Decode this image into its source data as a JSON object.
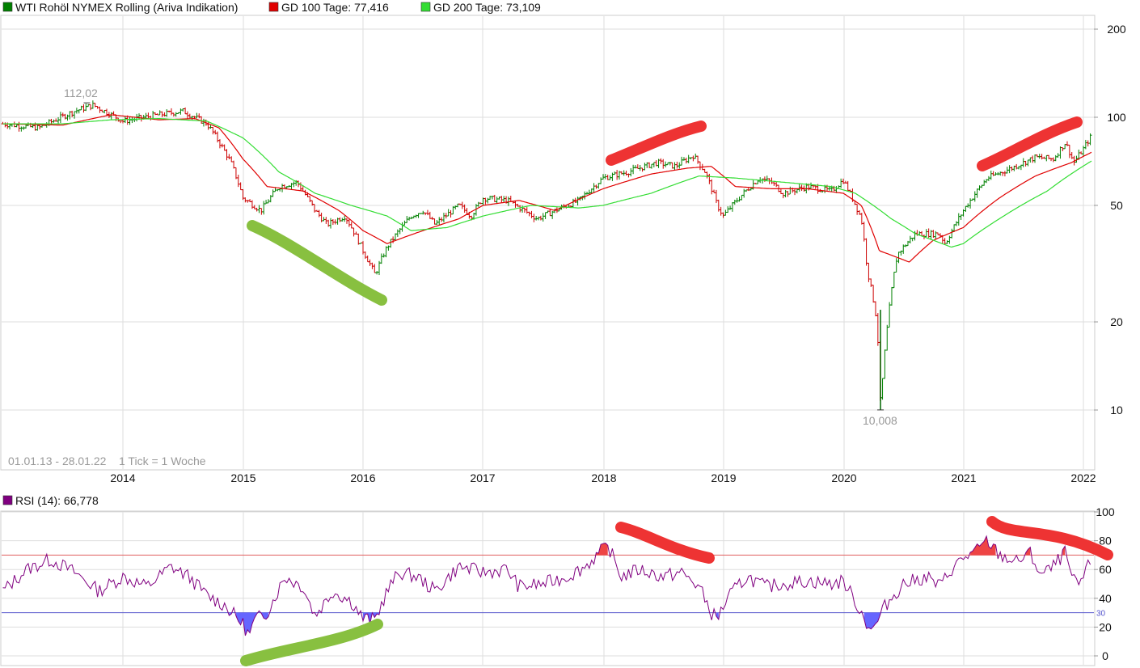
{
  "legend": {
    "price_label": "WTI Rohöl NYMEX Rolling (Ariva Indikation)",
    "gd100_label": "GD 100 Tage: 77,416",
    "gd200_label": "GD 200 Tage: 73,109",
    "rsi_label": "RSI (14): 66,778"
  },
  "info": {
    "range": "01.01.13 - 28.01.22",
    "tick": "1 Tick = 1 Woche"
  },
  "annotations": {
    "high_label": "112,02",
    "low_label": "10,008"
  },
  "colors": {
    "price_legend": "#008000",
    "gd100": "#e00000",
    "gd200": "#33dd33",
    "rsi": "#800080",
    "rsi_fill": "#6666ff",
    "rsi_over_fill": "#ee4444",
    "marker_red": "#ee3333",
    "marker_green": "#88c040",
    "grid": "#dddddd"
  },
  "chart_data": [
    {
      "type": "line",
      "scale": "log",
      "x_labels": [
        "2014",
        "2015",
        "2016",
        "2017",
        "2018",
        "2019",
        "2020",
        "2021",
        "2022"
      ],
      "y_ticks": [
        10,
        20,
        50,
        100,
        200
      ],
      "y_tick_labels": [
        "10",
        "20",
        "50",
        "100",
        "200"
      ],
      "series": [
        {
          "name": "WTI Rohöl NYMEX Rolling (Ariva Indikation)",
          "points": [
            [
              2013.0,
              95
            ],
            [
              2013.3,
              92
            ],
            [
              2013.6,
              105
            ],
            [
              2013.75,
              110
            ],
            [
              2014.0,
              97
            ],
            [
              2014.3,
              102
            ],
            [
              2014.5,
              105
            ],
            [
              2014.7,
              95
            ],
            [
              2014.9,
              70
            ],
            [
              2015.0,
              53
            ],
            [
              2015.15,
              48
            ],
            [
              2015.3,
              58
            ],
            [
              2015.45,
              60
            ],
            [
              2015.6,
              48
            ],
            [
              2015.7,
              43
            ],
            [
              2015.85,
              46
            ],
            [
              2016.0,
              35
            ],
            [
              2016.1,
              29
            ],
            [
              2016.2,
              36
            ],
            [
              2016.4,
              46
            ],
            [
              2016.5,
              48
            ],
            [
              2016.6,
              43
            ],
            [
              2016.8,
              50
            ],
            [
              2016.9,
              46
            ],
            [
              2017.0,
              53
            ],
            [
              2017.2,
              52
            ],
            [
              2017.45,
              45
            ],
            [
              2017.6,
              48
            ],
            [
              2017.8,
              52
            ],
            [
              2018.0,
              62
            ],
            [
              2018.2,
              65
            ],
            [
              2018.45,
              70
            ],
            [
              2018.6,
              68
            ],
            [
              2018.75,
              74
            ],
            [
              2018.85,
              65
            ],
            [
              2018.95,
              50
            ],
            [
              2019.0,
              46
            ],
            [
              2019.3,
              62
            ],
            [
              2019.4,
              60
            ],
            [
              2019.5,
              55
            ],
            [
              2019.7,
              58
            ],
            [
              2019.9,
              56
            ],
            [
              2020.0,
              61
            ],
            [
              2020.15,
              45
            ],
            [
              2020.2,
              30
            ],
            [
              2020.28,
              20
            ],
            [
              2020.31,
              10.008
            ],
            [
              2020.36,
              18
            ],
            [
              2020.45,
              34
            ],
            [
              2020.6,
              40
            ],
            [
              2020.8,
              40
            ],
            [
              2020.85,
              37
            ],
            [
              2021.0,
              48
            ],
            [
              2021.2,
              62
            ],
            [
              2021.4,
              67
            ],
            [
              2021.6,
              73
            ],
            [
              2021.75,
              72
            ],
            [
              2021.85,
              82
            ],
            [
              2021.92,
              70
            ],
            [
              2022.0,
              78
            ],
            [
              2022.07,
              87
            ]
          ]
        },
        {
          "name": "GD 100 Tage: 77,416",
          "points": [
            [
              2013.0,
              95
            ],
            [
              2013.5,
              94
            ],
            [
              2013.9,
              102
            ],
            [
              2014.3,
              98
            ],
            [
              2014.6,
              99
            ],
            [
              2014.8,
              92
            ],
            [
              2015.0,
              72
            ],
            [
              2015.2,
              58
            ],
            [
              2015.5,
              56
            ],
            [
              2015.8,
              48
            ],
            [
              2016.0,
              41
            ],
            [
              2016.2,
              37
            ],
            [
              2016.5,
              41
            ],
            [
              2016.8,
              45
            ],
            [
              2017.0,
              50
            ],
            [
              2017.3,
              52
            ],
            [
              2017.6,
              48
            ],
            [
              2018.0,
              57
            ],
            [
              2018.4,
              64
            ],
            [
              2018.7,
              67
            ],
            [
              2018.9,
              68
            ],
            [
              2019.1,
              58
            ],
            [
              2019.4,
              57
            ],
            [
              2019.7,
              57
            ],
            [
              2020.0,
              55
            ],
            [
              2020.15,
              50
            ],
            [
              2020.3,
              35
            ],
            [
              2020.55,
              32
            ],
            [
              2020.75,
              38
            ],
            [
              2021.0,
              42
            ],
            [
              2021.3,
              53
            ],
            [
              2021.6,
              63
            ],
            [
              2021.9,
              70
            ],
            [
              2022.07,
              76
            ]
          ]
        },
        {
          "name": "GD 200 Tage: 73,109",
          "points": [
            [
              2013.0,
              95
            ],
            [
              2013.5,
              95
            ],
            [
              2013.9,
              98
            ],
            [
              2014.3,
              99
            ],
            [
              2014.7,
              97
            ],
            [
              2015.0,
              85
            ],
            [
              2015.3,
              65
            ],
            [
              2015.6,
              55
            ],
            [
              2015.9,
              50
            ],
            [
              2016.2,
              46
            ],
            [
              2016.4,
              41
            ],
            [
              2016.7,
              42
            ],
            [
              2017.0,
              46
            ],
            [
              2017.4,
              50
            ],
            [
              2017.8,
              49
            ],
            [
              2018.0,
              50
            ],
            [
              2018.4,
              55
            ],
            [
              2018.8,
              63
            ],
            [
              2019.1,
              62
            ],
            [
              2019.5,
              60
            ],
            [
              2019.9,
              58
            ],
            [
              2020.1,
              55
            ],
            [
              2020.4,
              45
            ],
            [
              2020.6,
              40
            ],
            [
              2020.9,
              36
            ],
            [
              2021.0,
              37
            ],
            [
              2021.3,
              45
            ],
            [
              2021.7,
              56
            ],
            [
              2022.07,
              71
            ]
          ]
        }
      ],
      "markers": {
        "high": {
          "x": 2013.7,
          "y": 112.02
        },
        "low": {
          "x": 2020.31,
          "y": 10.008
        }
      }
    },
    {
      "type": "line",
      "y_ticks": [
        0,
        20,
        40,
        60,
        80,
        100
      ],
      "y_tick_labels": [
        "0",
        "20",
        "40",
        "60",
        "80",
        "100"
      ],
      "thresholds": [
        {
          "value": 70,
          "color": "#e06060"
        },
        {
          "value": 30,
          "color": "#5555cc",
          "label": "30"
        }
      ],
      "series": [
        {
          "name": "RSI (14): 66,778",
          "points": [
            [
              2013.0,
              45
            ],
            [
              2013.2,
              60
            ],
            [
              2013.4,
              67
            ],
            [
              2013.6,
              58
            ],
            [
              2013.8,
              45
            ],
            [
              2014.0,
              55
            ],
            [
              2014.2,
              48
            ],
            [
              2014.4,
              62
            ],
            [
              2014.55,
              55
            ],
            [
              2014.7,
              42
            ],
            [
              2014.85,
              35
            ],
            [
              2015.0,
              22
            ],
            [
              2015.05,
              14
            ],
            [
              2015.1,
              25
            ],
            [
              2015.2,
              30
            ],
            [
              2015.35,
              55
            ],
            [
              2015.5,
              48
            ],
            [
              2015.6,
              28
            ],
            [
              2015.75,
              45
            ],
            [
              2015.9,
              38
            ],
            [
              2016.0,
              26
            ],
            [
              2016.1,
              25
            ],
            [
              2016.2,
              45
            ],
            [
              2016.3,
              58
            ],
            [
              2016.45,
              55
            ],
            [
              2016.6,
              45
            ],
            [
              2016.8,
              62
            ],
            [
              2017.0,
              58
            ],
            [
              2017.2,
              60
            ],
            [
              2017.3,
              48
            ],
            [
              2017.5,
              50
            ],
            [
              2017.7,
              55
            ],
            [
              2017.85,
              62
            ],
            [
              2018.0,
              74
            ],
            [
              2018.05,
              75
            ],
            [
              2018.15,
              55
            ],
            [
              2018.3,
              60
            ],
            [
              2018.5,
              55
            ],
            [
              2018.65,
              58
            ],
            [
              2018.8,
              48
            ],
            [
              2018.9,
              30
            ],
            [
              2018.95,
              26
            ],
            [
              2019.05,
              42
            ],
            [
              2019.2,
              55
            ],
            [
              2019.35,
              48
            ],
            [
              2019.5,
              50
            ],
            [
              2019.7,
              52
            ],
            [
              2019.9,
              50
            ],
            [
              2020.0,
              52
            ],
            [
              2020.1,
              38
            ],
            [
              2020.2,
              22
            ],
            [
              2020.25,
              18
            ],
            [
              2020.35,
              35
            ],
            [
              2020.5,
              50
            ],
            [
              2020.7,
              55
            ],
            [
              2020.8,
              48
            ],
            [
              2020.9,
              60
            ],
            [
              2021.0,
              68
            ],
            [
              2021.1,
              72
            ],
            [
              2021.2,
              80
            ],
            [
              2021.3,
              70
            ],
            [
              2021.45,
              65
            ],
            [
              2021.55,
              72
            ],
            [
              2021.65,
              56
            ],
            [
              2021.75,
              62
            ],
            [
              2021.85,
              72
            ],
            [
              2021.9,
              55
            ],
            [
              2021.95,
              48
            ],
            [
              2022.0,
              55
            ],
            [
              2022.07,
              67
            ]
          ]
        }
      ]
    }
  ]
}
